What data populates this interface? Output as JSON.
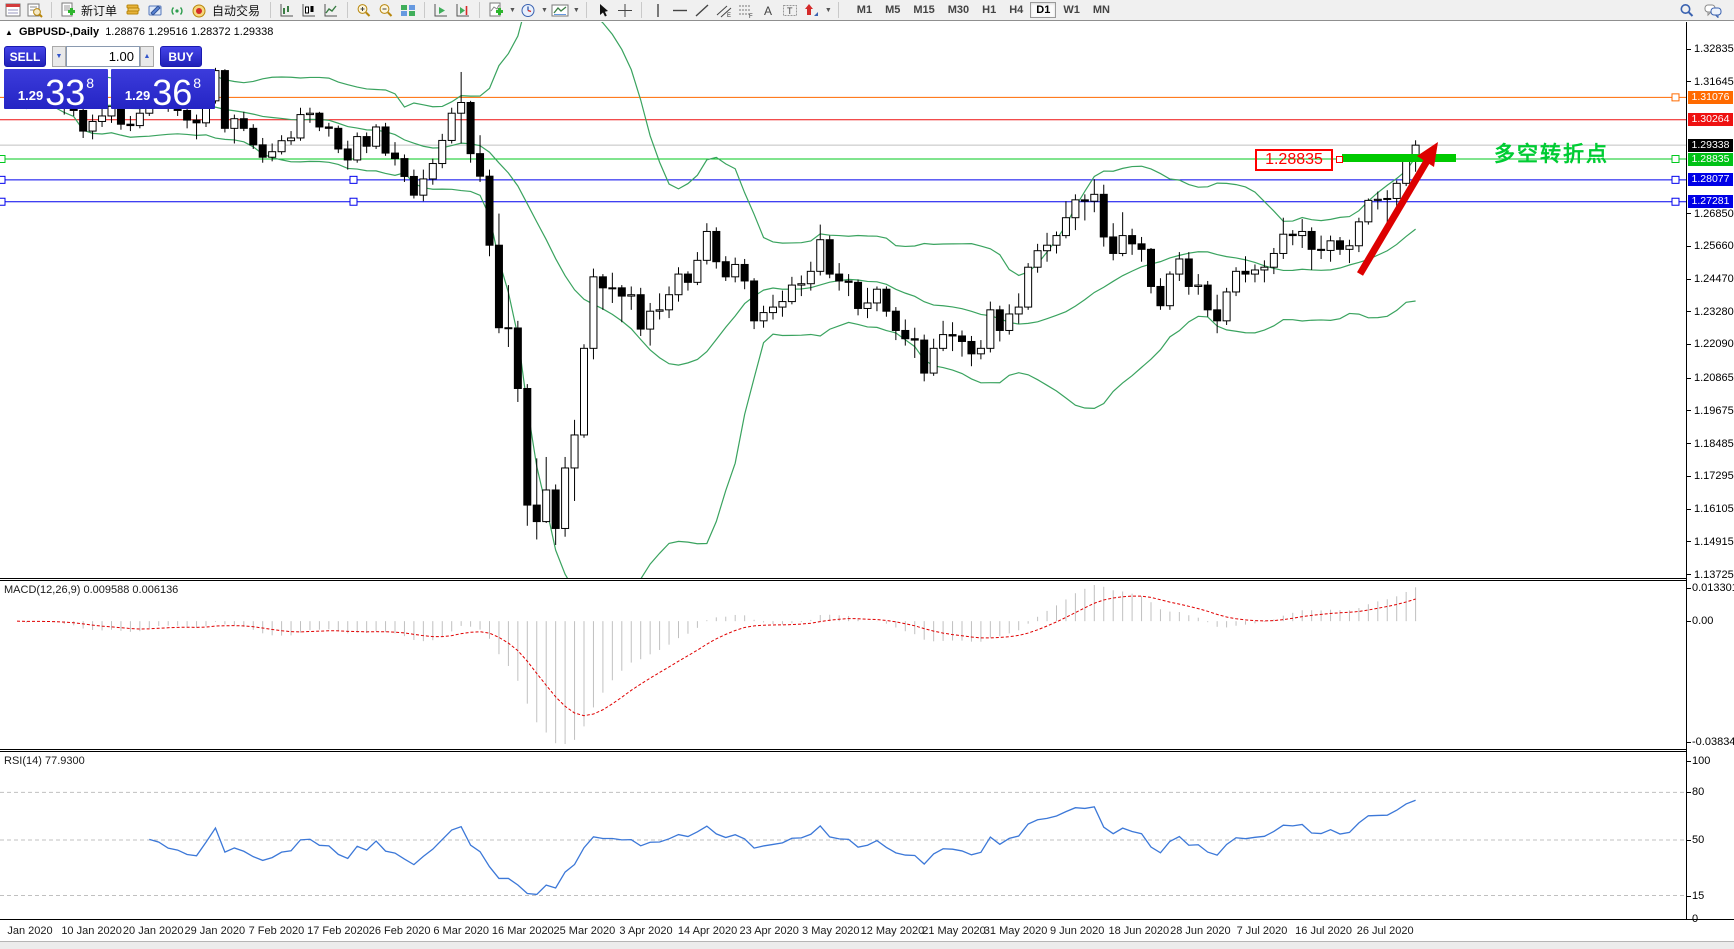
{
  "toolbar": {
    "new_order_label": "新订单",
    "autotrade_label": "自动交易",
    "timeframes": [
      "M1",
      "M5",
      "M15",
      "M30",
      "H1",
      "H4",
      "D1",
      "W1",
      "MN"
    ],
    "active_timeframe": "D1"
  },
  "chart_title": {
    "symbol": "GBPUSD-,Daily",
    "quote": "1.28876 1.29516 1.28372 1.29338"
  },
  "trade_panel": {
    "sell_label": "SELL",
    "buy_label": "BUY",
    "volume": "1.00",
    "sell_price": {
      "big_prefix": "1.29",
      "big": "33",
      "sup": "8"
    },
    "buy_price": {
      "big_prefix": "1.29",
      "big": "36",
      "sup": "8"
    }
  },
  "indicators": {
    "macd": {
      "label": "MACD(12,26,9)",
      "values": "0.009588 0.006136",
      "axis": [
        "0.013301",
        "0.00",
        "-0.038343"
      ]
    },
    "rsi": {
      "label": "RSI(14)",
      "value": "77.9300",
      "axis": [
        "100",
        "80",
        "50",
        "15",
        "0"
      ],
      "levels": [
        80,
        50,
        15
      ]
    }
  },
  "annotations": {
    "price_tag": "1.28835",
    "note": "多空转折点"
  },
  "chart_data": {
    "type": "candlestick",
    "symbol": "GBPUSD",
    "timeframe": "Daily",
    "title": "GBPUSD-,Daily 1.28876 1.29516 1.28372 1.29338",
    "overlays": [
      "Bollinger Bands",
      "MACD(12,26,9)",
      "RSI(14)"
    ],
    "x_labels": [
      "Jan 2020",
      "10 Jan 2020",
      "20 Jan 2020",
      "29 Jan 2020",
      "7 Feb 2020",
      "17 Feb 2020",
      "26 Feb 2020",
      "6 Mar 2020",
      "16 Mar 2020",
      "25 Mar 2020",
      "3 Apr 2020",
      "14 Apr 2020",
      "23 Apr 2020",
      "3 May 2020",
      "12 May 2020",
      "21 May 2020",
      "31 May 2020",
      "9 Jun 2020",
      "18 Jun 2020",
      "28 Jun 2020",
      "7 Jul 2020",
      "16 Jul 2020",
      "26 Jul 2020"
    ],
    "y_ticks": [
      "1.32835",
      "1.31645",
      "1.26850",
      "1.25660",
      "1.24470",
      "1.23280",
      "1.22090",
      "1.20865",
      "1.19675",
      "1.18485",
      "1.17295",
      "1.16105",
      "1.14915",
      "1.13725"
    ],
    "levels": [
      {
        "price": "1.31076",
        "value": 1.31076,
        "line": "#ff6a00",
        "bg": "#ff6a00",
        "handles": [
          "right"
        ]
      },
      {
        "price": "1.30264",
        "value": 1.30264,
        "line": "#ee1111",
        "bg": "#ee1111",
        "handles": []
      },
      {
        "price": "1.29338",
        "value": 1.29338,
        "line": "#c0c0c0",
        "bg": "#000000",
        "handles": []
      },
      {
        "price": "1.28835",
        "value": 1.28835,
        "line": "#00c81e",
        "bg": "#00c216",
        "handles": [
          "left",
          "right"
        ]
      },
      {
        "price": "1.28077",
        "value": 1.28077,
        "line": "#0000ee",
        "bg": "#0000e6",
        "handles": [
          "left",
          "mid",
          "right"
        ]
      },
      {
        "price": "1.27281",
        "value": 1.27281,
        "line": "#0000ee",
        "bg": "#0000e6",
        "handles": [
          "left",
          "mid",
          "right"
        ]
      }
    ],
    "colors": {
      "bands": "#3aa35f",
      "bull": "#ffffff",
      "bear": "#000000",
      "wick": "#000000",
      "rsi": "#3c78d8",
      "macd_hist": "#c0c0c0",
      "macd_signal": "#e00000",
      "arrow": "#dd0000",
      "bar": "#00ca00",
      "level_grey": "#c0c0c0"
    },
    "candles": [
      [
        1.312,
        1.3162,
        1.3098,
        1.3135
      ],
      [
        1.3135,
        1.316,
        1.3065,
        1.309
      ],
      [
        1.309,
        1.3185,
        1.3075,
        1.3165
      ],
      [
        1.3165,
        1.318,
        1.3095,
        1.312
      ],
      [
        1.312,
        1.3145,
        1.308,
        1.3105
      ],
      [
        1.3105,
        1.313,
        1.3045,
        1.307
      ],
      [
        1.307,
        1.3095,
        1.304,
        1.306
      ],
      [
        1.306,
        1.3075,
        1.296,
        1.2985
      ],
      [
        1.2985,
        1.3045,
        1.2955,
        1.302
      ],
      [
        1.302,
        1.307,
        1.3,
        1.304
      ],
      [
        1.304,
        1.3095,
        1.3015,
        1.3075
      ],
      [
        1.3075,
        1.3085,
        1.299,
        1.301
      ],
      [
        1.301,
        1.304,
        1.2985,
        1.3005
      ],
      [
        1.3005,
        1.307,
        1.2995,
        1.305
      ],
      [
        1.305,
        1.3155,
        1.304,
        1.314
      ],
      [
        1.314,
        1.3155,
        1.309,
        1.312
      ],
      [
        1.312,
        1.314,
        1.3055,
        1.3075
      ],
      [
        1.3075,
        1.31,
        1.304,
        1.306
      ],
      [
        1.306,
        1.308,
        1.2995,
        1.3025
      ],
      [
        1.3025,
        1.3045,
        1.2955,
        1.3015
      ],
      [
        1.3015,
        1.311,
        1.3,
        1.3095
      ],
      [
        1.3095,
        1.3215,
        1.3085,
        1.3205
      ],
      [
        1.3205,
        1.321,
        1.298,
        1.2995
      ],
      [
        1.2995,
        1.3045,
        1.294,
        1.303
      ],
      [
        1.303,
        1.3055,
        1.2985,
        1.2995
      ],
      [
        1.2995,
        1.301,
        1.292,
        1.2935
      ],
      [
        1.2935,
        1.296,
        1.287,
        1.289
      ],
      [
        1.289,
        1.294,
        1.2875,
        1.291
      ],
      [
        1.291,
        1.297,
        1.29,
        1.295
      ],
      [
        1.295,
        1.2985,
        1.2935,
        1.296
      ],
      [
        1.296,
        1.307,
        1.295,
        1.3045
      ],
      [
        1.3045,
        1.307,
        1.3015,
        1.305
      ],
      [
        1.305,
        1.3055,
        1.2985,
        1.3
      ],
      [
        1.3,
        1.3015,
        1.2965,
        1.2995
      ],
      [
        1.2995,
        1.3005,
        1.2905,
        1.292
      ],
      [
        1.292,
        1.295,
        1.2845,
        1.288
      ],
      [
        1.288,
        1.298,
        1.287,
        1.2965
      ],
      [
        1.2965,
        1.298,
        1.2905,
        1.293
      ],
      [
        1.293,
        1.301,
        1.292,
        1.3
      ],
      [
        1.3,
        1.3015,
        1.2895,
        1.2905
      ],
      [
        1.2905,
        1.2945,
        1.286,
        1.2885
      ],
      [
        1.2885,
        1.29,
        1.28,
        1.282
      ],
      [
        1.282,
        1.2845,
        1.274,
        1.2752
      ],
      [
        1.2752,
        1.2845,
        1.273,
        1.2811
      ],
      [
        1.2811,
        1.2885,
        1.279,
        1.2867
      ],
      [
        1.2867,
        1.2975,
        1.285,
        1.2951
      ],
      [
        1.2951,
        1.307,
        1.294,
        1.305
      ],
      [
        1.305,
        1.32,
        1.294,
        1.3089
      ],
      [
        1.3089,
        1.3095,
        1.287,
        1.2903
      ],
      [
        1.2903,
        1.297,
        1.28,
        1.2821
      ],
      [
        1.2821,
        1.2845,
        1.253,
        1.257
      ],
      [
        1.257,
        1.2685,
        1.225,
        1.227
      ],
      [
        1.227,
        1.2425,
        1.22,
        1.2269
      ],
      [
        1.2269,
        1.2295,
        1.2,
        1.2049
      ],
      [
        1.2049,
        1.2065,
        1.155,
        1.1625
      ],
      [
        1.1625,
        1.1795,
        1.15,
        1.1565
      ],
      [
        1.1565,
        1.18,
        1.156,
        1.168
      ],
      [
        1.168,
        1.17,
        1.148,
        1.154
      ],
      [
        1.154,
        1.18,
        1.151,
        1.176
      ],
      [
        1.176,
        1.1935,
        1.164,
        1.188
      ],
      [
        1.188,
        1.221,
        1.187,
        1.2195
      ],
      [
        1.2195,
        1.2485,
        1.2155,
        1.2455
      ],
      [
        1.2455,
        1.2465,
        1.2335,
        1.2415
      ],
      [
        1.2415,
        1.247,
        1.236,
        1.2415
      ],
      [
        1.2415,
        1.2425,
        1.229,
        1.2385
      ],
      [
        1.2385,
        1.242,
        1.2335,
        1.239
      ],
      [
        1.239,
        1.2415,
        1.224,
        1.2265
      ],
      [
        1.2265,
        1.236,
        1.2205,
        1.233
      ],
      [
        1.233,
        1.2395,
        1.23,
        1.2335
      ],
      [
        1.2335,
        1.242,
        1.2305,
        1.239
      ],
      [
        1.239,
        1.249,
        1.2365,
        1.2465
      ],
      [
        1.2465,
        1.2475,
        1.2405,
        1.2435
      ],
      [
        1.2435,
        1.2545,
        1.2425,
        1.2515
      ],
      [
        1.2515,
        1.265,
        1.25,
        1.262
      ],
      [
        1.262,
        1.2635,
        1.2485,
        1.251
      ],
      [
        1.251,
        1.253,
        1.244,
        1.2455
      ],
      [
        1.2455,
        1.2525,
        1.2435,
        1.25
      ],
      [
        1.25,
        1.252,
        1.241,
        1.244
      ],
      [
        1.244,
        1.245,
        1.2265,
        1.2295
      ],
      [
        1.2295,
        1.235,
        1.227,
        1.2325
      ],
      [
        1.2325,
        1.239,
        1.23,
        1.2345
      ],
      [
        1.2345,
        1.2405,
        1.231,
        1.2365
      ],
      [
        1.2365,
        1.2455,
        1.2355,
        1.2425
      ],
      [
        1.2425,
        1.246,
        1.2385,
        1.243
      ],
      [
        1.243,
        1.251,
        1.2405,
        1.2475
      ],
      [
        1.2475,
        1.2645,
        1.246,
        1.259
      ],
      [
        1.259,
        1.2605,
        1.245,
        1.2465
      ],
      [
        1.2465,
        1.2505,
        1.2405,
        1.244
      ],
      [
        1.244,
        1.2465,
        1.2385,
        1.2435
      ],
      [
        1.2435,
        1.2445,
        1.2315,
        1.234
      ],
      [
        1.234,
        1.2415,
        1.2305,
        1.236
      ],
      [
        1.236,
        1.242,
        1.233,
        1.241
      ],
      [
        1.241,
        1.242,
        1.231,
        1.233
      ],
      [
        1.233,
        1.2345,
        1.2225,
        1.226
      ],
      [
        1.226,
        1.23,
        1.2205,
        1.223
      ],
      [
        1.223,
        1.227,
        1.216,
        1.2225
      ],
      [
        1.2225,
        1.2245,
        1.2075,
        1.2105
      ],
      [
        1.2105,
        1.223,
        1.2095,
        1.2195
      ],
      [
        1.2195,
        1.2295,
        1.2185,
        1.2245
      ],
      [
        1.2245,
        1.229,
        1.2185,
        1.224
      ],
      [
        1.224,
        1.226,
        1.2165,
        1.222
      ],
      [
        1.222,
        1.224,
        1.213,
        1.2175
      ],
      [
        1.2175,
        1.2225,
        1.2155,
        1.2195
      ],
      [
        1.2195,
        1.2365,
        1.218,
        1.2335
      ],
      [
        1.2335,
        1.235,
        1.222,
        1.226
      ],
      [
        1.226,
        1.2355,
        1.2245,
        1.232
      ],
      [
        1.232,
        1.2395,
        1.2285,
        1.2345
      ],
      [
        1.2345,
        1.2505,
        1.2335,
        1.249
      ],
      [
        1.249,
        1.2575,
        1.247,
        1.255
      ],
      [
        1.255,
        1.2615,
        1.251,
        1.257
      ],
      [
        1.257,
        1.262,
        1.254,
        1.2605
      ],
      [
        1.2605,
        1.273,
        1.2595,
        1.267
      ],
      [
        1.267,
        1.2755,
        1.2625,
        1.2735
      ],
      [
        1.2735,
        1.2755,
        1.266,
        1.273
      ],
      [
        1.273,
        1.281,
        1.269,
        1.2755
      ],
      [
        1.2755,
        1.279,
        1.2565,
        1.26
      ],
      [
        1.26,
        1.265,
        1.2515,
        1.254
      ],
      [
        1.254,
        1.269,
        1.253,
        1.2605
      ],
      [
        1.2605,
        1.263,
        1.2535,
        1.2575
      ],
      [
        1.2575,
        1.26,
        1.251,
        1.2555
      ],
      [
        1.2555,
        1.256,
        1.2395,
        1.242
      ],
      [
        1.242,
        1.245,
        1.2335,
        1.235
      ],
      [
        1.235,
        1.2475,
        1.2335,
        1.2465
      ],
      [
        1.2465,
        1.2545,
        1.244,
        1.252
      ],
      [
        1.252,
        1.2545,
        1.239,
        1.242
      ],
      [
        1.242,
        1.2465,
        1.239,
        1.2425
      ],
      [
        1.2425,
        1.244,
        1.231,
        1.2335
      ],
      [
        1.2335,
        1.239,
        1.225,
        1.2295
      ],
      [
        1.2295,
        1.2415,
        1.228,
        1.24
      ],
      [
        1.24,
        1.249,
        1.2385,
        1.2475
      ],
      [
        1.2475,
        1.253,
        1.2435,
        1.2465
      ],
      [
        1.2465,
        1.25,
        1.2435,
        1.248
      ],
      [
        1.248,
        1.2515,
        1.2435,
        1.249
      ],
      [
        1.249,
        1.256,
        1.2465,
        1.254
      ],
      [
        1.254,
        1.267,
        1.252,
        1.261
      ],
      [
        1.261,
        1.2625,
        1.257,
        1.2605
      ],
      [
        1.2605,
        1.2665,
        1.256,
        1.262
      ],
      [
        1.262,
        1.2635,
        1.248,
        1.2555
      ],
      [
        1.2555,
        1.2605,
        1.252,
        1.2551
      ],
      [
        1.2551,
        1.2605,
        1.251,
        1.2586
      ],
      [
        1.2586,
        1.26,
        1.2535,
        1.2555
      ],
      [
        1.2555,
        1.259,
        1.2505,
        1.2568
      ],
      [
        1.2568,
        1.267,
        1.2545,
        1.2655
      ],
      [
        1.2655,
        1.274,
        1.2645,
        1.2733
      ],
      [
        1.2733,
        1.2765,
        1.27,
        1.2737
      ],
      [
        1.2737,
        1.277,
        1.2645,
        1.274
      ],
      [
        1.274,
        1.2805,
        1.2705,
        1.2795
      ],
      [
        1.2795,
        1.29,
        1.2785,
        1.2878
      ],
      [
        1.28876,
        1.29516,
        1.28372,
        1.29338
      ]
    ]
  }
}
